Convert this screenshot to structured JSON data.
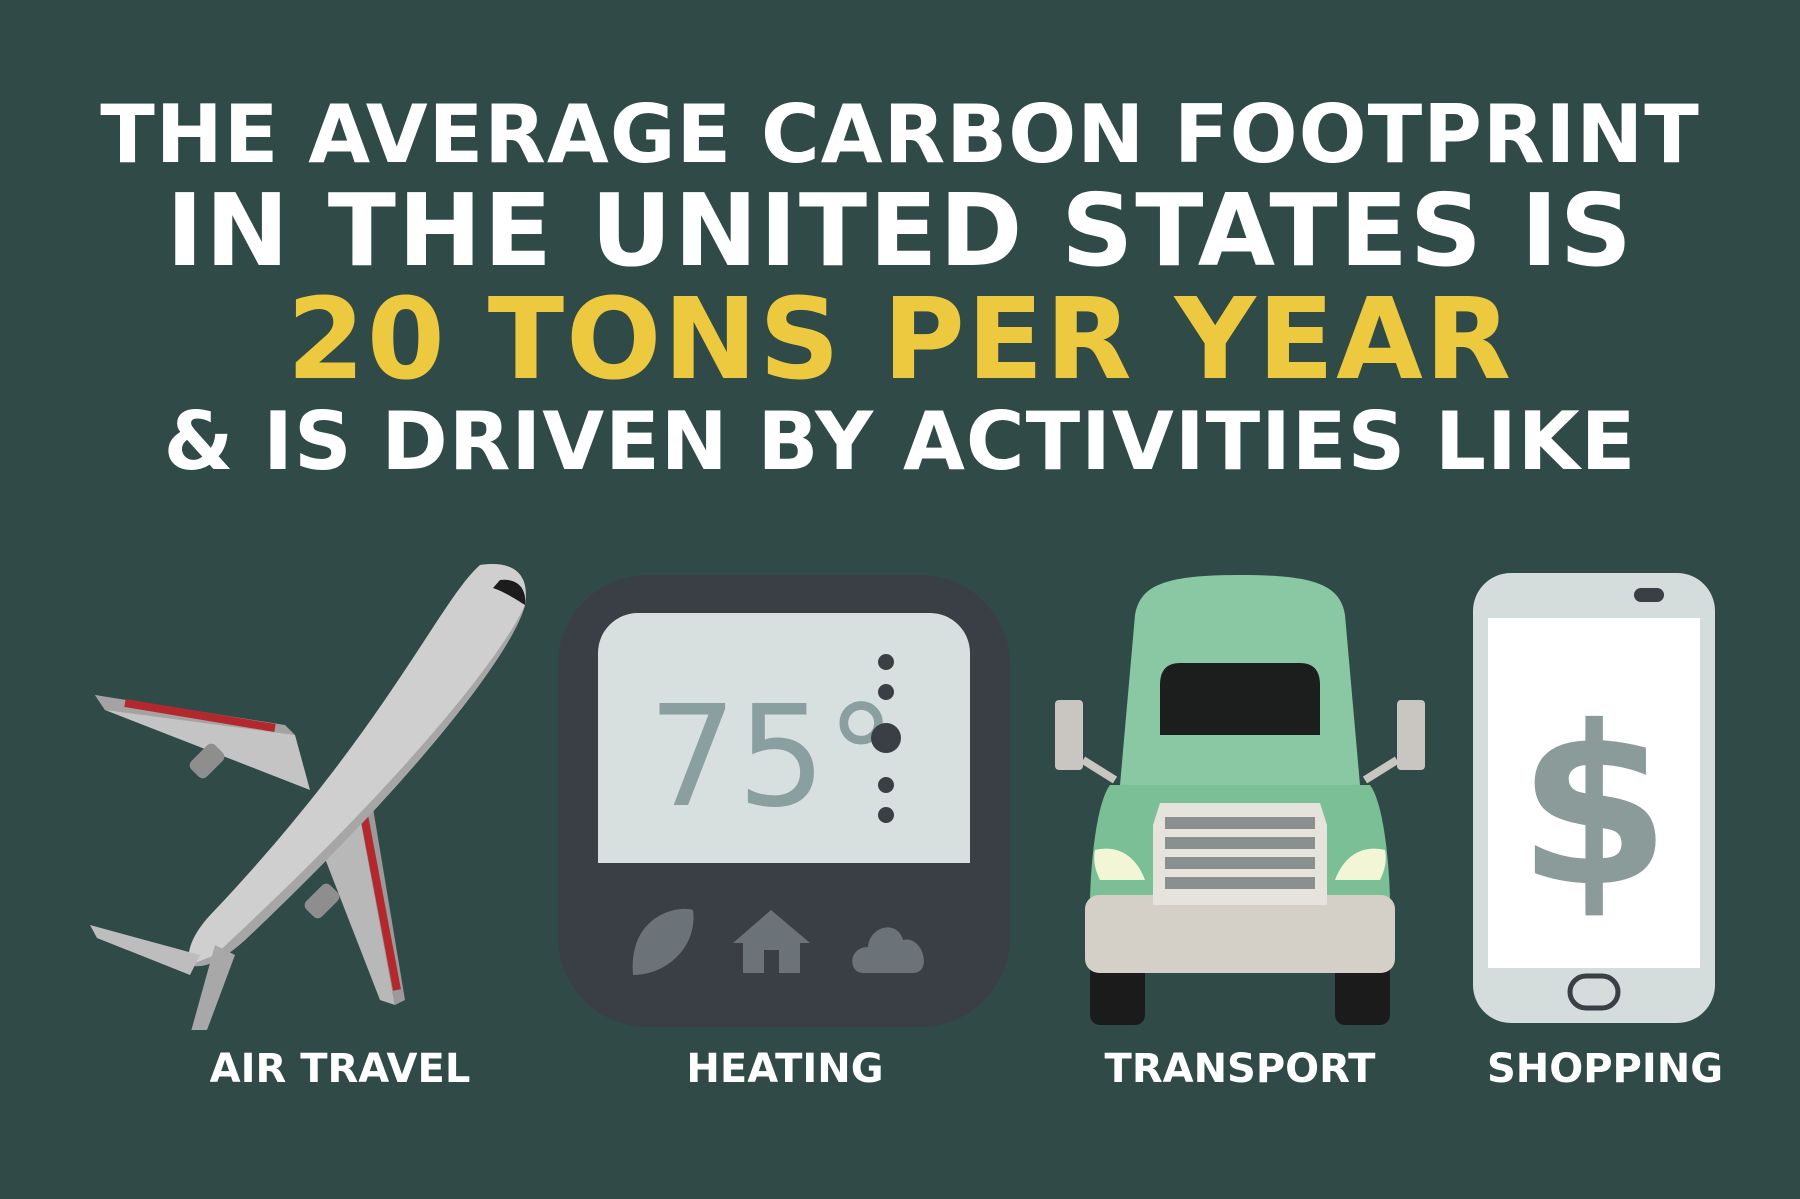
{
  "headline": {
    "line1": "THE AVERAGE CARBON FOOTPRINT",
    "line2": "IN THE UNITED STATES IS",
    "line3": "20 TONS PER YEAR",
    "line4": "& IS DRIVEN BY ACTIVITIES LIKE"
  },
  "activities": [
    {
      "label": "AIR TRAVEL",
      "icon": "airplane-icon"
    },
    {
      "label": "HEATING",
      "icon": "thermostat-icon",
      "display": "75°"
    },
    {
      "label": "TRANSPORT",
      "icon": "truck-icon"
    },
    {
      "label": "SHOPPING",
      "icon": "smartphone-dollar-icon",
      "symbol": "$"
    }
  ],
  "colors": {
    "background": "#2f4a47",
    "accent": "#ecc93f",
    "text": "#ffffff"
  }
}
